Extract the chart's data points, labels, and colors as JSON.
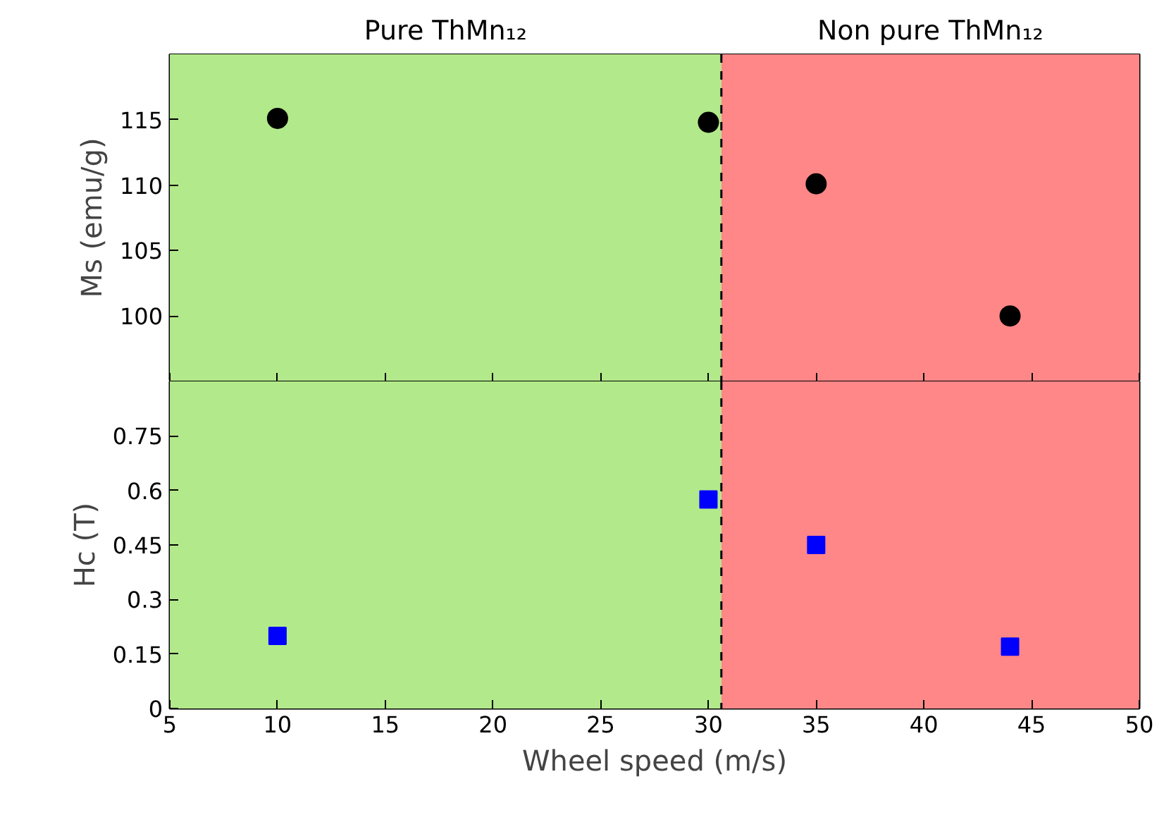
{
  "chart_data": [
    {
      "type": "scatter",
      "ylabel": "Ms (emu/g)",
      "x": [
        10,
        30,
        35,
        44
      ],
      "series": [
        {
          "color": "#000000",
          "values": [
            115.1,
            114.8,
            110.1,
            100.0
          ]
        }
      ],
      "marker": "circle",
      "xlim": [
        5,
        50
      ],
      "xticks": [
        5,
        10,
        15,
        20,
        25,
        30,
        35,
        40,
        45,
        50
      ],
      "ylim": [
        95,
        120
      ],
      "yticks": [
        100,
        105,
        110,
        115
      ],
      "tick_labels": "y",
      "bands": [
        {
          "axis": "x",
          "from": 5,
          "to": 30.6,
          "label": "Pure ThMn₁₂",
          "color": "#b2e98a"
        },
        {
          "axis": "x",
          "from": 30.6,
          "to": 50,
          "label": "Non pure ThMn₁₂",
          "color": "#ff8787"
        }
      ],
      "ref_lines": [
        {
          "axis": "x",
          "value": 30.6,
          "line_style": "dashed",
          "color": "#000000"
        }
      ]
    },
    {
      "type": "scatter",
      "xlabel": "Wheel speed (m/s)",
      "ylabel": "Hc (T)",
      "x": [
        10,
        30,
        35,
        44
      ],
      "series": [
        {
          "color": "#0000ff",
          "values": [
            0.2,
            0.575,
            0.45,
            0.17
          ]
        }
      ],
      "marker": "square",
      "xlim": [
        5,
        50
      ],
      "xticks": [
        5,
        10,
        15,
        20,
        25,
        30,
        35,
        40,
        45,
        50
      ],
      "ylim": [
        0,
        0.9
      ],
      "yticks": [
        0,
        0.15,
        {
          "value": 0.3,
          "label": "0.3"
        },
        0.45,
        {
          "value": 0.6,
          "label": "0.6"
        },
        0.75
      ],
      "bands": [
        {
          "axis": "x",
          "from": 5,
          "to": 30.6,
          "color": "#b2e98a"
        },
        {
          "axis": "x",
          "from": 30.6,
          "to": 50,
          "color": "#ff8787"
        }
      ],
      "ref_lines": [
        {
          "axis": "x",
          "value": 30.6,
          "line_style": "dashed",
          "color": "#000000"
        }
      ]
    }
  ]
}
